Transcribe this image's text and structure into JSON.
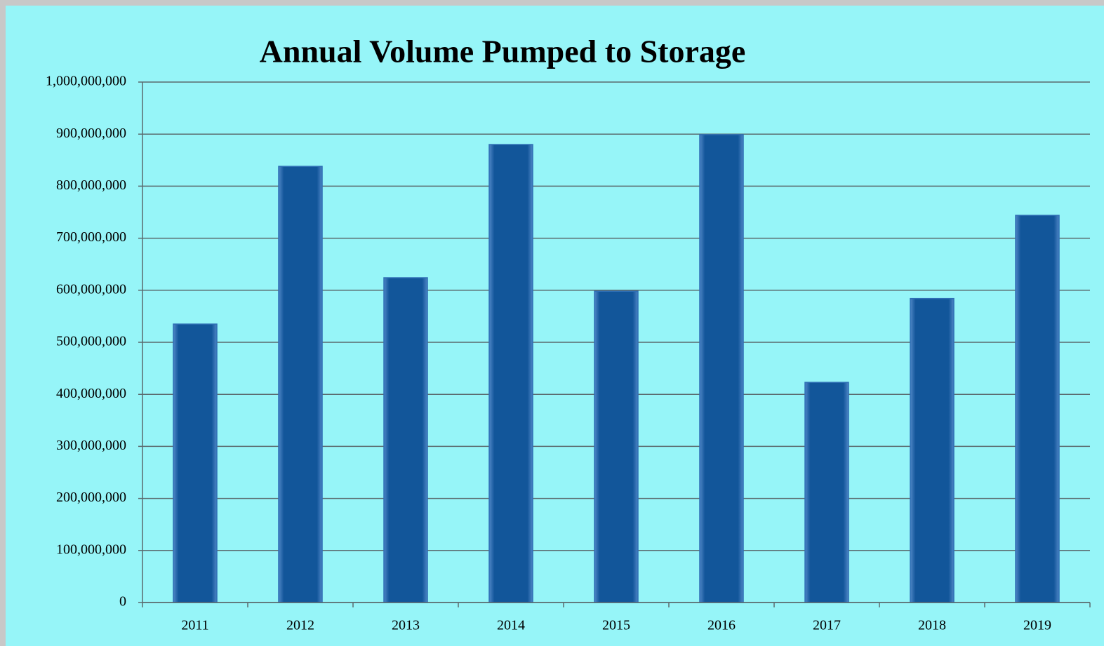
{
  "chart_data": {
    "type": "bar",
    "title": "Annual Volume Pumped to Storage",
    "categories": [
      "2011",
      "2012",
      "2013",
      "2014",
      "2015",
      "2016",
      "2017",
      "2018",
      "2019"
    ],
    "values": [
      535000000,
      838000000,
      624000000,
      880000000,
      598000000,
      899000000,
      423000000,
      584000000,
      744000000
    ],
    "color": "#12569a",
    "ylim": [
      0,
      1000000000
    ],
    "yticks": [
      0,
      {
        "value": 100000000,
        "label": "100,000,000"
      },
      {
        "value": 200000000,
        "label": "200,000,000"
      },
      {
        "value": 300000000,
        "label": "300,000,000"
      },
      {
        "value": 400000000,
        "label": "400,000,000"
      },
      {
        "value": 500000000,
        "label": "500,000,000"
      },
      {
        "value": 600000000,
        "label": "600,000,000"
      },
      {
        "value": 700000000,
        "label": "700,000,000"
      },
      {
        "value": 800000000,
        "label": "800,000,000"
      },
      {
        "value": 900000000,
        "label": "900,000,000"
      },
      {
        "value": 1000000000,
        "label": "1,000,000,000"
      }
    ],
    "grid": true
  }
}
